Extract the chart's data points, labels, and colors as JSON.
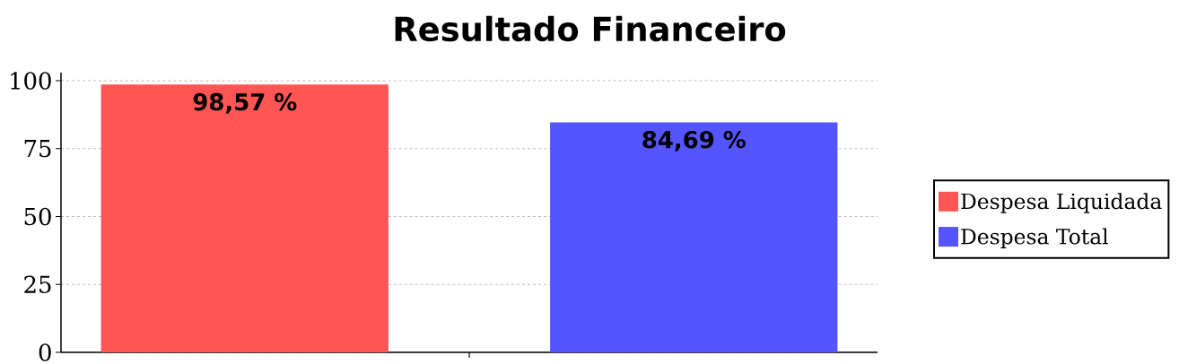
{
  "chart_data": {
    "type": "bar",
    "title": "Resultado Financeiro",
    "categories": [
      null
    ],
    "series": [
      {
        "name": "Despesa Liquidada",
        "color": "#ff5555",
        "values": [
          98.57
        ],
        "value_labels": [
          "98,57 %"
        ]
      },
      {
        "name": "Despesa Total",
        "color": "#5555ff",
        "values": [
          84.69
        ],
        "value_labels": [
          "84,69 %"
        ]
      }
    ],
    "ylim": [
      0,
      103
    ],
    "yticks": [
      0,
      25,
      50,
      75,
      100
    ],
    "grid": "y",
    "legend": "right"
  }
}
